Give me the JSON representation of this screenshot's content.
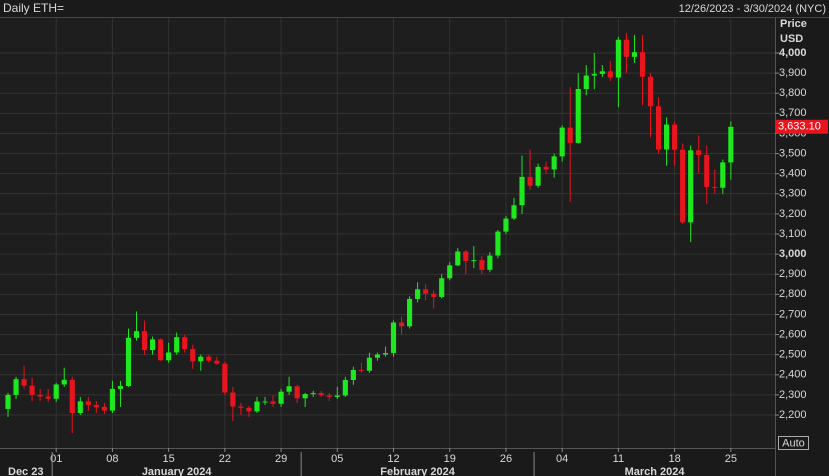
{
  "chart_data": {
    "type": "candlestick",
    "title": "Daily ETH=",
    "subtitle": "12/26/2023 - 3/30/2024 (NYC)",
    "y_axis_label": "Price",
    "currency": "USD",
    "button": "Auto",
    "up_color": "#1ee81e",
    "down_color": "#e8141e",
    "xlim": [
      "2023-12-26",
      "2024-03-30"
    ],
    "ylim": [
      2036,
      4174
    ],
    "yticks": [
      {
        "value": 2200,
        "label": "2,200"
      },
      {
        "value": 2300,
        "label": "2,300"
      },
      {
        "value": 2400,
        "label": "2,400"
      },
      {
        "value": 2500,
        "label": "2,500"
      },
      {
        "value": 2600,
        "label": "2,600"
      },
      {
        "value": 2700,
        "label": "2,700"
      },
      {
        "value": 2800,
        "label": "2,800"
      },
      {
        "value": 2900,
        "label": "2,900"
      },
      {
        "value": 3000,
        "label": "3,000"
      },
      {
        "value": 3100,
        "label": "3,100"
      },
      {
        "value": 3200,
        "label": "3,200"
      },
      {
        "value": 3300,
        "label": "3,300"
      },
      {
        "value": 3400,
        "label": "3,400"
      },
      {
        "value": 3500,
        "label": "3,500"
      },
      {
        "value": 3600,
        "label": "3,600"
      },
      {
        "value": 3700,
        "label": "3,700"
      },
      {
        "value": 3800,
        "label": "3,800"
      },
      {
        "value": 3900,
        "label": "3,900"
      },
      {
        "value": 4000,
        "label": "4,000"
      }
    ],
    "xticks": [
      {
        "value": "2024-01-01",
        "label": "01"
      },
      {
        "value": "2024-01-08",
        "label": "08"
      },
      {
        "value": "2024-01-15",
        "label": "15"
      },
      {
        "value": "2024-01-22",
        "label": "22"
      },
      {
        "value": "2024-01-29",
        "label": "29"
      },
      {
        "value": "2024-02-05",
        "label": "05"
      },
      {
        "value": "2024-02-12",
        "label": "12"
      },
      {
        "value": "2024-02-19",
        "label": "19"
      },
      {
        "value": "2024-02-26",
        "label": "26"
      },
      {
        "value": "2024-03-04",
        "label": "04"
      },
      {
        "value": "2024-03-11",
        "label": "11"
      },
      {
        "value": "2024-03-18",
        "label": "18"
      },
      {
        "value": "2024-03-25",
        "label": "25"
      }
    ],
    "month_labels": [
      {
        "value": "2023-12",
        "label": "Dec 23"
      },
      {
        "value": "2024-01",
        "label": "January 2024"
      },
      {
        "value": "2024-02",
        "label": "February 2024"
      },
      {
        "value": "2024-03",
        "label": "March 2024"
      }
    ],
    "last_price": {
      "value": 3633.1,
      "label": "3,633.10"
    },
    "x": [
      "2023-12-26",
      "2023-12-27",
      "2023-12-28",
      "2023-12-29",
      "2023-12-30",
      "2023-12-31",
      "2024-01-01",
      "2024-01-02",
      "2024-01-03",
      "2024-01-04",
      "2024-01-05",
      "2024-01-06",
      "2024-01-07",
      "2024-01-08",
      "2024-01-09",
      "2024-01-10",
      "2024-01-11",
      "2024-01-12",
      "2024-01-13",
      "2024-01-14",
      "2024-01-15",
      "2024-01-16",
      "2024-01-17",
      "2024-01-18",
      "2024-01-19",
      "2024-01-20",
      "2024-01-21",
      "2024-01-22",
      "2024-01-23",
      "2024-01-24",
      "2024-01-25",
      "2024-01-26",
      "2024-01-27",
      "2024-01-28",
      "2024-01-29",
      "2024-01-30",
      "2024-01-31",
      "2024-02-01",
      "2024-02-02",
      "2024-02-03",
      "2024-02-04",
      "2024-02-05",
      "2024-02-06",
      "2024-02-07",
      "2024-02-08",
      "2024-02-09",
      "2024-02-10",
      "2024-02-11",
      "2024-02-12",
      "2024-02-13",
      "2024-02-14",
      "2024-02-15",
      "2024-02-16",
      "2024-02-17",
      "2024-02-18",
      "2024-02-19",
      "2024-02-20",
      "2024-02-21",
      "2024-02-22",
      "2024-02-23",
      "2024-02-24",
      "2024-02-25",
      "2024-02-26",
      "2024-02-27",
      "2024-02-28",
      "2024-02-29",
      "2024-03-01",
      "2024-03-02",
      "2024-03-03",
      "2024-03-04",
      "2024-03-05",
      "2024-03-06",
      "2024-03-07",
      "2024-03-08",
      "2024-03-09",
      "2024-03-10",
      "2024-03-11",
      "2024-03-12",
      "2024-03-13",
      "2024-03-14",
      "2024-03-15",
      "2024-03-16",
      "2024-03-17",
      "2024-03-18",
      "2024-03-19",
      "2024-03-20",
      "2024-03-21",
      "2024-03-22",
      "2024-03-23",
      "2024-03-24",
      "2024-03-25"
    ],
    "open": [
      2230,
      2300,
      2378,
      2346,
      2300,
      2292,
      2281,
      2352,
      2375,
      2210,
      2268,
      2250,
      2240,
      2222,
      2330,
      2344,
      2584,
      2617,
      2523,
      2576,
      2472,
      2511,
      2587,
      2528,
      2467,
      2490,
      2470,
      2455,
      2312,
      2242,
      2236,
      2218,
      2267,
      2267,
      2256,
      2316,
      2343,
      2283,
      2304,
      2309,
      2298,
      2290,
      2297,
      2374,
      2424,
      2420,
      2485,
      2501,
      2508,
      2660,
      2641,
      2777,
      2825,
      2803,
      2787,
      2880,
      2944,
      3013,
      2966,
      2970,
      2922,
      2993,
      3112,
      3177,
      3243,
      3384,
      3340,
      3434,
      3421,
      3486,
      3629,
      3553,
      3821,
      3888,
      3896,
      3909,
      3878,
      4066,
      3981,
      4004,
      3882,
      3735,
      3520,
      3644,
      3519,
      3158,
      3516,
      3493,
      3334,
      3330,
      3456
    ],
    "high": [
      2310,
      2390,
      2445,
      2385,
      2330,
      2330,
      2360,
      2435,
      2390,
      2290,
      2290,
      2270,
      2260,
      2370,
      2370,
      2630,
      2715,
      2670,
      2590,
      2580,
      2560,
      2610,
      2600,
      2550,
      2500,
      2500,
      2490,
      2465,
      2340,
      2260,
      2245,
      2290,
      2290,
      2300,
      2330,
      2390,
      2350,
      2310,
      2320,
      2320,
      2310,
      2340,
      2390,
      2440,
      2460,
      2510,
      2510,
      2540,
      2670,
      2690,
      2790,
      2860,
      2850,
      2820,
      2900,
      2960,
      3030,
      3020,
      3040,
      2990,
      3010,
      3120,
      3190,
      3280,
      3490,
      3520,
      3450,
      3460,
      3500,
      3640,
      3830,
      3900,
      3940,
      4000,
      3940,
      3960,
      4080,
      4100,
      4090,
      4090,
      3900,
      3780,
      3680,
      3660,
      3550,
      3540,
      3590,
      3540,
      3420,
      3470,
      3660
    ],
    "low": [
      2190,
      2280,
      2330,
      2270,
      2270,
      2265,
      2265,
      2340,
      2110,
      2200,
      2220,
      2210,
      2205,
      2210,
      2240,
      2340,
      2570,
      2500,
      2500,
      2470,
      2460,
      2500,
      2510,
      2430,
      2420,
      2460,
      2450,
      2300,
      2170,
      2200,
      2190,
      2210,
      2250,
      2240,
      2240,
      2300,
      2260,
      2240,
      2290,
      2290,
      2270,
      2280,
      2290,
      2350,
      2410,
      2410,
      2470,
      2490,
      2490,
      2600,
      2630,
      2760,
      2770,
      2730,
      2780,
      2870,
      2940,
      2900,
      2930,
      2900,
      2910,
      2980,
      3100,
      3170,
      3200,
      3320,
      3330,
      3400,
      3380,
      3460,
      3260,
      3550,
      3790,
      3820,
      3880,
      3860,
      3730,
      3900,
      3950,
      3740,
      3580,
      3500,
      3440,
      3440,
      3150,
      3060,
      3400,
      3250,
      3300,
      3300,
      3370
    ],
    "close": [
      2300,
      2378,
      2346,
      2300,
      2292,
      2281,
      2352,
      2375,
      2210,
      2268,
      2250,
      2240,
      2222,
      2330,
      2344,
      2584,
      2617,
      2523,
      2576,
      2472,
      2511,
      2587,
      2528,
      2467,
      2490,
      2470,
      2455,
      2312,
      2242,
      2236,
      2218,
      2267,
      2267,
      2256,
      2316,
      2343,
      2283,
      2304,
      2309,
      2298,
      2290,
      2297,
      2374,
      2424,
      2420,
      2485,
      2501,
      2508,
      2660,
      2641,
      2777,
      2825,
      2803,
      2787,
      2880,
      2944,
      3013,
      2966,
      2970,
      2922,
      2993,
      3112,
      3177,
      3243,
      3384,
      3340,
      3434,
      3421,
      3486,
      3629,
      3553,
      3821,
      3888,
      3896,
      3909,
      3878,
      4066,
      3981,
      4004,
      3882,
      3735,
      3520,
      3644,
      3519,
      3158,
      3516,
      3493,
      3334,
      3330,
      3456,
      3633.1
    ],
    "grid": true
  }
}
